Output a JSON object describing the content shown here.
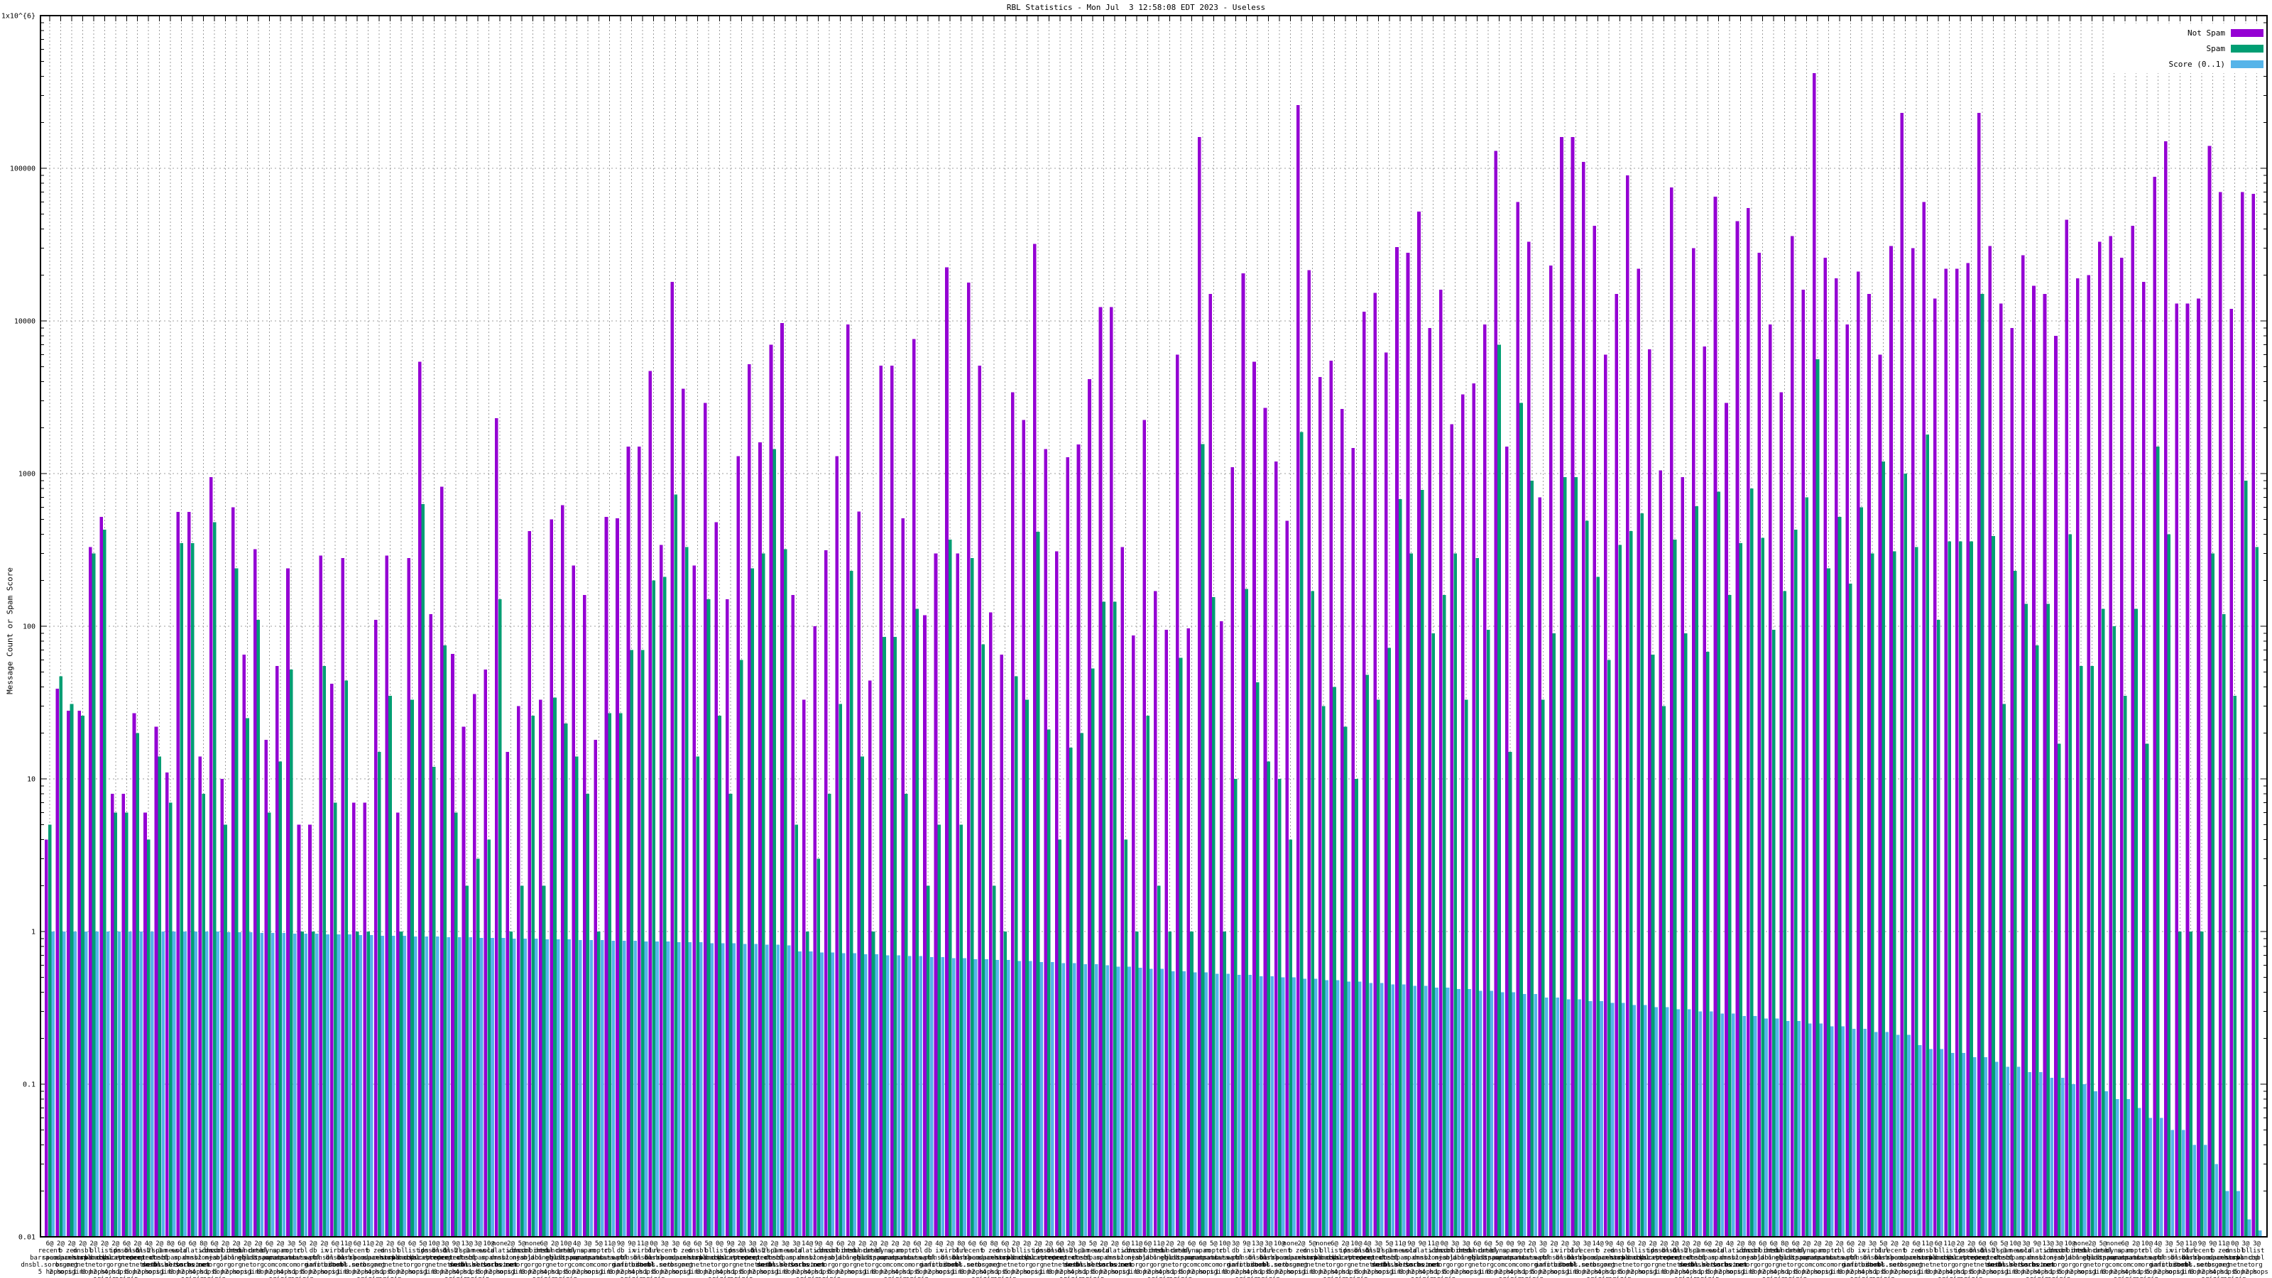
{
  "title": "RBL Statistics - Mon Jul  3 12:58:08 EDT 2023 - Useless",
  "y_axis": {
    "label": "Message Count or Spam Score",
    "scale": "log",
    "min": 0.01,
    "max": 1000000,
    "ticks": [
      [
        "1x10^{6}",
        1000000
      ],
      [
        "100000",
        100000
      ],
      [
        "10000",
        10000
      ],
      [
        "1000",
        1000
      ],
      [
        "100",
        100
      ],
      [
        "10",
        10
      ],
      [
        "1",
        1
      ],
      [
        "0.1",
        0.1
      ],
      [
        "0.01",
        0.01
      ]
    ]
  },
  "legend": [
    {
      "label": "Not Spam",
      "color": "#9400d3"
    },
    {
      "label": "Spam",
      "color": "#009e73"
    },
    {
      "label": "Score (0..1)",
      "color": "#56b4e9"
    }
  ],
  "grid": {
    "color": "#9f9f9f",
    "horizontal": true,
    "vertical": true
  },
  "chart_data": {
    "type": "bar",
    "log_scale_y": true,
    "ylim": [
      0.01,
      1000000
    ],
    "series_names": [
      "Not Spam",
      "Spam",
      "Score (0..1)"
    ],
    "columns": [
      "label (count|rbl zone|hops)",
      "not_spam",
      "spam",
      "score"
    ],
    "labels": [
      "6@|recent.spam.dnsbl.sorbs.net|5 hops",
      "2@|b.barracudacentral.org|2 hops",
      "2@|zen.spamhaus.org|origin",
      "2@|dnsbl.sorbs.net|1 hop",
      "2@|bl.spamcop.net|3 hops",
      "2@|list.dsbl.org|2 hops origin",
      "2@|ips.backscatterer.org|4 hops",
      "6@|dnsbl-1.uceprotect.net|1 hop origin",
      "2@|dnsbl-2.uceprotect.net|5 hops",
      "4@|dnsbl-3.uceprotect.net|2 hops",
      "2@|spam.dnsbl.sorbs.net|origin",
      "8@|new.spam.dnsbl.sorbs.net|1 hop",
      "6@|old.spam.dnsbl.sorbs.net|3 hops",
      "6@|escalations.dnsbl.sorbs.net|2 hops origin",
      "8@|wl.nszones.com|4 hops",
      "6@|dnsbl.njabl.org|1 hop origin",
      "2@|combined.njabl.org|5 hops",
      "2@|dnsbl.dronebl.org|2 hops",
      "2@|truncate.gbudb.net|origin",
      "2@|dnsbl.justspam.org|1 hop",
      "6@|dyna.spamrats.com|3 hops",
      "2@|spam.spamrats.com|2 hops origin",
      "3@|noptr.spamrats.com|4 hops",
      "5@|cbl.abuseat.org|1 hop origin",
      "2@|db.wpbl.info|5 hops",
      "2@|ix.dnsbl.manitu.net|2 hops",
      "6@|virbl.dnsbl.bit.nl|origin",
      "11@|dul.dnsbl.sorbs.net|1 hop",
      "6@|recent.spam.dnsbl.sorbs.net|3 hops",
      "11@|b.barracudacentral.org|2 hops origin",
      "2@|zen.spamhaus.org|4 hops",
      "2@|dnsbl.sorbs.net|1 hop origin",
      "6@|bl.spamcop.net|5 hops",
      "6@|list.dsbl.org|2 hops",
      "5@|ips.backscatterer.org|origin",
      "10@|dnsbl-1.uceprotect.net|1 hop",
      "3@|dnsbl-2.uceprotect.net|3 hops",
      "9@|dnsbl-3.uceprotect.net|2 hops origin",
      "13@|spam.dnsbl.sorbs.net|4 hops",
      "3@|new.spam.dnsbl.sorbs.net|1 hop origin",
      "10@|old.spam.dnsbl.sorbs.net|5 hops",
      "none|escalations.dnsbl.sorbs.net|2 hops",
      "2@|wl.nszones.com|origin",
      "5@|dnsbl.njabl.org|1 hop",
      "none|combined.njabl.org|3 hops",
      "6@|dnsbl.dronebl.org|2 hops origin",
      "2@|truncate.gbudb.net|4 hops",
      "10@|dnsbl.justspam.org|1 hop origin",
      "4@|dyna.spamrats.com|5 hops",
      "3@|spam.spamrats.com|2 hops",
      "5@|noptr.spamrats.com|origin",
      "11@|cbl.abuseat.org|1 hop",
      "9@|db.wpbl.info|3 hops",
      "9@|ix.dnsbl.manitu.net|2 hops origin",
      "11@|virbl.dnsbl.bit.nl|4 hops",
      "0@|dul.dnsbl.sorbs.net|1 hop origin",
      "3@|recent.spam.dnsbl.sorbs.net|5 hops",
      "3@|b.barracudacentral.org|2 hops",
      "6@|zen.spamhaus.org|origin",
      "6@|dnsbl.sorbs.net|1 hop",
      "5@|bl.spamcop.net|3 hops",
      "0@|list.dsbl.org|2 hops origin",
      "9@|ips.backscatterer.org|4 hops",
      "2@|dnsbl-1.uceprotect.net|1 hop origin",
      "3@|dnsbl-2.uceprotect.net|5 hops",
      "2@|dnsbl-3.uceprotect.net|2 hops",
      "2@|spam.dnsbl.sorbs.net|origin",
      "3@|new.spam.dnsbl.sorbs.net|1 hop",
      "3@|old.spam.dnsbl.sorbs.net|3 hops",
      "14@|escalations.dnsbl.sorbs.net|2 hops origin",
      "9@|wl.nszones.com|4 hops",
      "4@|dnsbl.njabl.org|1 hop origin",
      "6@|combined.njabl.org|5 hops",
      "2@|dnsbl.dronebl.org|2 hops",
      "2@|truncate.gbudb.net|origin",
      "2@|dnsbl.justspam.org|1 hop",
      "2@|dyna.spamrats.com|3 hops",
      "2@|spam.spamrats.com|2 hops origin",
      "2@|noptr.spamrats.com|4 hops",
      "6@|cbl.abuseat.org|1 hop origin",
      "2@|db.wpbl.info|5 hops",
      "4@|ix.dnsbl.manitu.net|2 hops",
      "2@|virbl.dnsbl.bit.nl|origin",
      "8@|dul.dnsbl.sorbs.net|1 hop",
      "6@|recent.spam.dnsbl.sorbs.net|3 hops",
      "6@|b.barracudacentral.org|2 hops origin",
      "8@|zen.spamhaus.org|4 hops",
      "6@|dnsbl.sorbs.net|1 hop origin",
      "2@|bl.spamcop.net|5 hops",
      "2@|list.dsbl.org|2 hops",
      "2@|ips.backscatterer.org|origin",
      "2@|dnsbl-1.uceprotect.net|1 hop",
      "6@|dnsbl-2.uceprotect.net|3 hops",
      "2@|dnsbl-3.uceprotect.net|2 hops origin",
      "3@|spam.dnsbl.sorbs.net|4 hops",
      "5@|new.spam.dnsbl.sorbs.net|1 hop origin",
      "2@|old.spam.dnsbl.sorbs.net|5 hops",
      "2@|escalations.dnsbl.sorbs.net|2 hops",
      "6@|wl.nszones.com|origin",
      "11@|dnsbl.njabl.org|1 hop",
      "6@|combined.njabl.org|3 hops",
      "11@|dnsbl.dronebl.org|2 hops origin",
      "2@|truncate.gbudb.net|4 hops",
      "2@|dnsbl.justspam.org|1 hop origin",
      "6@|dyna.spamrats.com|5 hops",
      "6@|spam.spamrats.com|2 hops",
      "5@|noptr.spamrats.com|origin",
      "10@|cbl.abuseat.org|1 hop",
      "3@|db.wpbl.info|3 hops",
      "9@|ix.dnsbl.manitu.net|2 hops origin",
      "13@|virbl.dnsbl.bit.nl|4 hops",
      "3@|dul.dnsbl.sorbs.net|1 hop origin",
      "10@|recent.spam.dnsbl.sorbs.net|5 hops",
      "none|b.barracudacentral.org|2 hops",
      "2@|zen.spamhaus.org|origin",
      "5@|dnsbl.sorbs.net|1 hop",
      "none|bl.spamcop.net|3 hops",
      "6@|list.dsbl.org|2 hops origin",
      "2@|ips.backscatterer.org|4 hops",
      "10@|dnsbl-1.uceprotect.net|1 hop origin",
      "4@|dnsbl-2.uceprotect.net|5 hops",
      "3@|dnsbl-3.uceprotect.net|2 hops",
      "5@|spam.dnsbl.sorbs.net|origin",
      "11@|new.spam.dnsbl.sorbs.net|1 hop",
      "9@|old.spam.dnsbl.sorbs.net|3 hops",
      "9@|escalations.dnsbl.sorbs.net|2 hops origin",
      "11@|wl.nszones.com|4 hops",
      "0@|dnsbl.njabl.org|1 hop origin",
      "3@|combined.njabl.org|5 hops",
      "3@|dnsbl.dronebl.org|2 hops",
      "6@|truncate.gbudb.net|origin",
      "6@|dnsbl.justspam.org|1 hop",
      "5@|dyna.spamrats.com|3 hops",
      "0@|spam.spamrats.com|2 hops origin",
      "9@|noptr.spamrats.com|4 hops",
      "2@|cbl.abuseat.org|1 hop origin",
      "3@|db.wpbl.info|5 hops",
      "2@|ix.dnsbl.manitu.net|2 hops",
      "2@|virbl.dnsbl.bit.nl|origin",
      "3@|dul.dnsbl.sorbs.net|1 hop",
      "3@|recent.spam.dnsbl.sorbs.net|3 hops",
      "14@|b.barracudacentral.org|2 hops origin",
      "9@|zen.spamhaus.org|4 hops",
      "4@|dnsbl.sorbs.net|1 hop origin",
      "6@|bl.spamcop.net|5 hops",
      "2@|list.dsbl.org|2 hops",
      "2@|ips.backscatterer.org|origin",
      "2@|dnsbl-1.uceprotect.net|1 hop",
      "2@|dnsbl-2.uceprotect.net|3 hops",
      "2@|dnsbl-3.uceprotect.net|2 hops origin",
      "2@|spam.dnsbl.sorbs.net|4 hops",
      "6@|new.spam.dnsbl.sorbs.net|1 hop origin",
      "2@|old.spam.dnsbl.sorbs.net|5 hops",
      "4@|escalations.dnsbl.sorbs.net|2 hops",
      "2@|wl.nszones.com|origin",
      "8@|dnsbl.njabl.org|1 hop",
      "6@|combined.njabl.org|3 hops",
      "6@|dnsbl.dronebl.org|2 hops origin",
      "8@|truncate.gbudb.net|4 hops",
      "6@|dnsbl.justspam.org|1 hop origin",
      "2@|dyna.spamrats.com|5 hops",
      "2@|spam.spamrats.com|2 hops",
      "2@|noptr.spamrats.com|origin",
      "2@|cbl.abuseat.org|1 hop",
      "6@|db.wpbl.info|3 hops",
      "2@|ix.dnsbl.manitu.net|2 hops origin",
      "3@|virbl.dnsbl.bit.nl|4 hops",
      "5@|dul.dnsbl.sorbs.net|1 hop origin",
      "2@|recent.spam.dnsbl.sorbs.net|5 hops",
      "2@|b.barracudacentral.org|2 hops",
      "6@|zen.spamhaus.org|origin",
      "11@|dnsbl.sorbs.net|1 hop",
      "6@|bl.spamcop.net|3 hops",
      "11@|list.dsbl.org|2 hops origin",
      "2@|ips.backscatterer.org|4 hops",
      "2@|dnsbl-1.uceprotect.net|1 hop origin",
      "6@|dnsbl-2.uceprotect.net|5 hops",
      "6@|dnsbl-3.uceprotect.net|2 hops",
      "5@|spam.dnsbl.sorbs.net|origin",
      "10@|new.spam.dnsbl.sorbs.net|1 hop",
      "3@|old.spam.dnsbl.sorbs.net|3 hops",
      "9@|escalations.dnsbl.sorbs.net|2 hops origin",
      "13@|wl.nszones.com|4 hops",
      "3@|dnsbl.njabl.org|1 hop origin",
      "10@|combined.njabl.org|5 hops",
      "none|dnsbl.dronebl.org|2 hops",
      "2@|truncate.gbudb.net|origin",
      "5@|dnsbl.justspam.org|1 hop",
      "none|dyna.spamrats.com|3 hops",
      "6@|spam.spamrats.com|2 hops origin",
      "2@|noptr.spamrats.com|4 hops",
      "10@|cbl.abuseat.org|1 hop origin",
      "4@|db.wpbl.info|5 hops",
      "3@|ix.dnsbl.manitu.net|2 hops",
      "5@|virbl.dnsbl.bit.nl|origin",
      "11@|dul.dnsbl.sorbs.net|1 hop",
      "9@|recent.spam.dnsbl.sorbs.net|3 hops",
      "9@|b.barracudacentral.org|2 hops origin",
      "11@|zen.spamhaus.org|4 hops",
      "0@|dnsbl.sorbs.net|1 hop origin",
      "3@|bl.spamcop.net|5 hops",
      "3@|list.dsbl.org|2 hops"
    ],
    "not_spam": [
      4,
      39,
      28,
      28,
      330,
      520,
      8,
      8,
      27,
      6,
      22,
      11,
      560,
      560,
      14,
      950,
      10,
      600,
      65,
      320,
      18,
      55,
      240,
      5,
      5,
      290,
      42,
      280,
      7,
      7,
      110,
      290,
      6,
      280,
      5400,
      120,
      820,
      66,
      22,
      36,
      52,
      2300,
      15,
      30,
      420,
      33,
      500,
      620,
      250,
      160,
      18,
      520,
      510,
      1500,
      1500,
      4700,
      340,
      18000,
      3600,
      250,
      2900,
      480,
      150,
      1300,
      5200,
      1600,
      7000,
      9700,
      160,
      33,
      100,
      315,
      1300,
      9500,
      565,
      44,
      5100,
      5100,
      510,
      7600,
      118,
      300,
      22500,
      300,
      17800,
      5100,
      123,
      65,
      3400,
      2250,
      32000,
      1450,
      310,
      1280,
      1550,
      4150,
      12300,
      12300,
      330,
      87,
      2250,
      170,
      95,
      6000,
      97,
      160000,
      15000,
      108,
      1100,
      20500,
      5400,
      2700,
      1200,
      490,
      260000,
      21500,
      4300,
      5500,
      2650,
      1470,
      11500,
      15300,
      6200,
      30500,
      28000,
      52000,
      9000,
      16000,
      2100,
      3300,
      3900,
      9500,
      130000,
      1500,
      60000,
      33000,
      700,
      23000,
      160000,
      160000,
      110000,
      42000,
      6000,
      15000,
      90000,
      22000,
      6500,
      1050,
      75000,
      950,
      30000,
      6800,
      65000,
      2900,
      45000,
      55000,
      28000,
      9500,
      3400,
      36000,
      16000,
      420000,
      26000,
      19000,
      9500,
      21000,
      15000,
      6000,
      31000,
      230000,
      30000,
      60000,
      14000,
      22000,
      22000,
      24000,
      230000,
      31000,
      13000,
      9000,
      27000,
      17000,
      15000,
      8000,
      46000,
      19000,
      20000,
      33000,
      36000,
      26000,
      42000,
      18000,
      88000,
      150000,
      13000,
      13000,
      14000,
      140000,
      70000,
      12000,
      70000,
      68000
    ],
    "spam": [
      5,
      47,
      31,
      26,
      300,
      430,
      6,
      6,
      20,
      4,
      14,
      7,
      350,
      350,
      8,
      480,
      5,
      240,
      25,
      110,
      6,
      13,
      52,
      1,
      1,
      55,
      7,
      44,
      1,
      1,
      15,
      35,
      1,
      33,
      630,
      12,
      75,
      6,
      2,
      3,
      4,
      150,
      1,
      2,
      26,
      2,
      34,
      23,
      14,
      8,
      1,
      27,
      27,
      70,
      70,
      200,
      210,
      730,
      330,
      14,
      150,
      26,
      8,
      60,
      240,
      300,
      1450,
      320,
      5,
      1,
      3,
      8,
      31,
      230,
      14,
      1,
      85,
      85,
      8,
      130,
      2,
      5,
      370,
      5,
      280,
      76,
      2,
      1,
      47,
      33,
      415,
      21,
      4,
      16,
      20,
      53,
      145,
      145,
      4,
      1,
      26,
      2,
      1,
      62,
      1,
      1560,
      155,
      1,
      10,
      175,
      43,
      13,
      10,
      4,
      1870,
      170,
      30,
      40,
      22,
      10,
      48,
      33,
      72,
      680,
      300,
      780,
      90,
      160,
      300,
      33,
      280,
      95,
      7000,
      15,
      2900,
      900,
      33,
      90,
      950,
      950,
      490,
      210,
      60,
      340,
      420,
      550,
      65,
      30,
      370,
      90,
      610,
      68,
      760,
      160,
      350,
      800,
      380,
      95,
      170,
      430,
      700,
      5600,
      240,
      520,
      190,
      600,
      300,
      1200,
      310,
      1000,
      330,
      1800,
      110,
      360,
      360,
      360,
      15000,
      390,
      31,
      230,
      140,
      75,
      140,
      17,
      400,
      55,
      55,
      130,
      100,
      35,
      130,
      17,
      1500,
      400,
      1,
      1,
      1,
      300,
      120,
      35,
      900,
      330
    ],
    "score": [
      1,
      1,
      1,
      1,
      1,
      1,
      1,
      1,
      1,
      1,
      1,
      1,
      1,
      1,
      1,
      1,
      0.99,
      0.99,
      0.99,
      0.98,
      0.98,
      0.98,
      0.97,
      0.97,
      0.97,
      0.96,
      0.96,
      0.96,
      0.95,
      0.95,
      0.94,
      0.94,
      0.94,
      0.93,
      0.93,
      0.93,
      0.92,
      0.92,
      0.92,
      0.91,
      0.91,
      0.91,
      0.9,
      0.9,
      0.9,
      0.89,
      0.89,
      0.89,
      0.88,
      0.88,
      0.88,
      0.87,
      0.87,
      0.87,
      0.86,
      0.86,
      0.86,
      0.85,
      0.85,
      0.85,
      0.84,
      0.84,
      0.84,
      0.83,
      0.83,
      0.82,
      0.82,
      0.81,
      0.74,
      0.74,
      0.73,
      0.73,
      0.72,
      0.72,
      0.71,
      0.71,
      0.7,
      0.7,
      0.69,
      0.69,
      0.68,
      0.68,
      0.67,
      0.67,
      0.66,
      0.66,
      0.65,
      0.65,
      0.64,
      0.64,
      0.63,
      0.63,
      0.62,
      0.62,
      0.61,
      0.61,
      0.6,
      0.59,
      0.59,
      0.58,
      0.57,
      0.57,
      0.55,
      0.55,
      0.54,
      0.54,
      0.53,
      0.53,
      0.52,
      0.52,
      0.51,
      0.51,
      0.5,
      0.5,
      0.49,
      0.49,
      0.48,
      0.48,
      0.47,
      0.47,
      0.46,
      0.46,
      0.45,
      0.45,
      0.44,
      0.44,
      0.43,
      0.43,
      0.42,
      0.42,
      0.41,
      0.41,
      0.4,
      0.4,
      0.39,
      0.39,
      0.37,
      0.37,
      0.36,
      0.36,
      0.35,
      0.35,
      0.34,
      0.34,
      0.33,
      0.33,
      0.32,
      0.32,
      0.31,
      0.31,
      0.3,
      0.3,
      0.29,
      0.29,
      0.28,
      0.28,
      0.27,
      0.27,
      0.26,
      0.26,
      0.25,
      0.25,
      0.24,
      0.24,
      0.23,
      0.23,
      0.22,
      0.22,
      0.21,
      0.21,
      0.18,
      0.17,
      0.17,
      0.16,
      0.16,
      0.15,
      0.15,
      0.14,
      0.13,
      0.13,
      0.12,
      0.12,
      0.11,
      0.11,
      0.1,
      0.1,
      0.09,
      0.09,
      0.08,
      0.08,
      0.07,
      0.06,
      0.06,
      0.05,
      0.05,
      0.04,
      0.04,
      0.03,
      0.02,
      0.02,
      0.013,
      0.011
    ]
  }
}
